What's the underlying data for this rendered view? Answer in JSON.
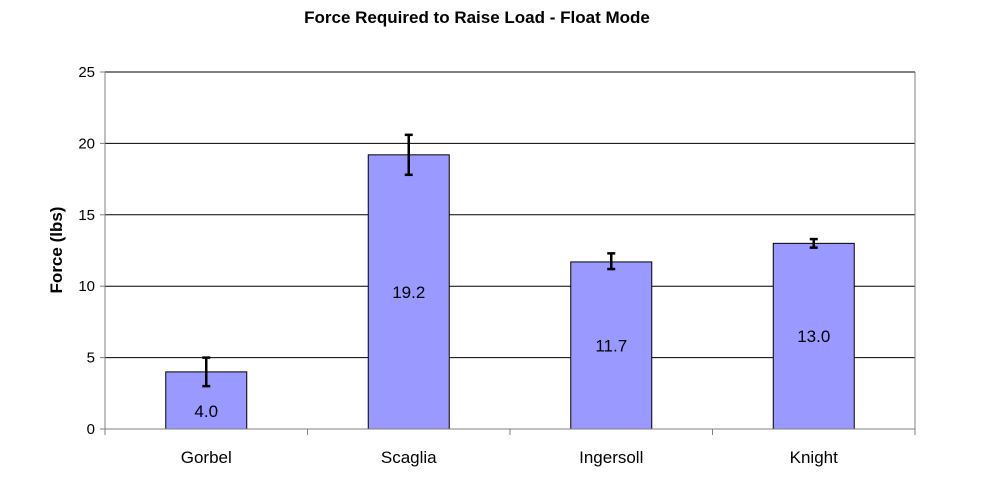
{
  "chart_data": {
    "type": "bar",
    "title": "Force Required to Raise Load - Float Mode",
    "xlabel": "",
    "ylabel": "Force (lbs)",
    "categories": [
      "Gorbel",
      "Scaglia",
      "Ingersoll",
      "Knight"
    ],
    "values": [
      4.0,
      19.2,
      11.7,
      13.0
    ],
    "value_labels": [
      "4.0",
      "19.2",
      "11.7",
      "13.0"
    ],
    "error_bars": [
      {
        "low": 3.0,
        "high": 5.0
      },
      {
        "low": 17.8,
        "high": 20.6
      },
      {
        "low": 11.2,
        "high": 12.3
      },
      {
        "low": 12.7,
        "high": 13.3
      }
    ],
    "ylim": [
      0,
      25
    ],
    "yticks": [
      "0",
      "5",
      "10",
      "15",
      "20",
      "25"
    ],
    "ytick_values": [
      0,
      5,
      10,
      15,
      20,
      25
    ],
    "grid": true,
    "legend": "none",
    "colors": {
      "bar_fill": "#9999ff",
      "bar_stroke": "#000000",
      "gridline": "#000000",
      "axis": "#808080",
      "error_bar": "#000000"
    }
  }
}
